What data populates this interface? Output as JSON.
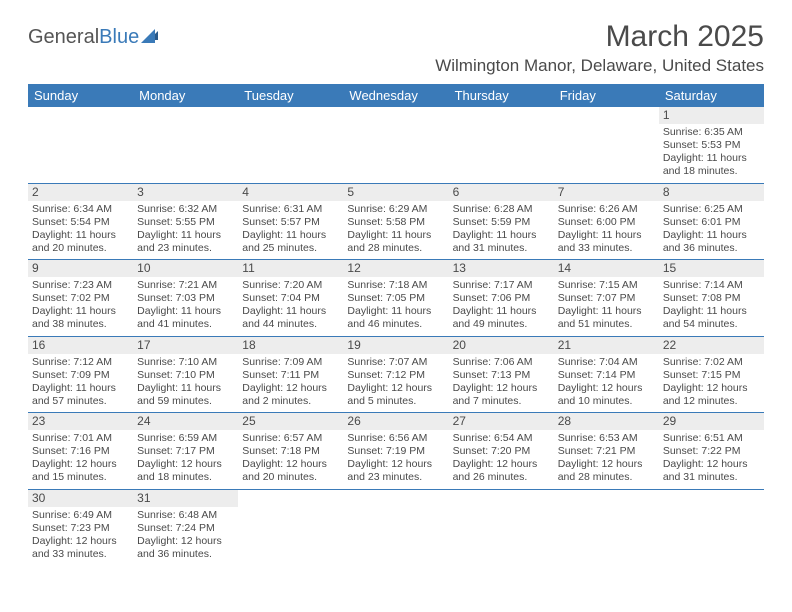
{
  "logo": {
    "general": "General",
    "blue": "Blue"
  },
  "title": "March 2025",
  "location": "Wilmington Manor, Delaware, United States",
  "colors": {
    "header_bg": "#3a7ab8",
    "header_text": "#ffffff",
    "cell_num_bg": "#ededed",
    "text": "#4a4a4a",
    "border": "#3a7ab8"
  },
  "day_names": [
    "Sunday",
    "Monday",
    "Tuesday",
    "Wednesday",
    "Thursday",
    "Friday",
    "Saturday"
  ],
  "weeks": [
    [
      {
        "n": "",
        "empty": true
      },
      {
        "n": "",
        "empty": true
      },
      {
        "n": "",
        "empty": true
      },
      {
        "n": "",
        "empty": true
      },
      {
        "n": "",
        "empty": true
      },
      {
        "n": "",
        "empty": true
      },
      {
        "n": "1",
        "sr": "Sunrise: 6:35 AM",
        "ss": "Sunset: 5:53 PM",
        "dl": "Daylight: 11 hours and 18 minutes."
      }
    ],
    [
      {
        "n": "2",
        "sr": "Sunrise: 6:34 AM",
        "ss": "Sunset: 5:54 PM",
        "dl": "Daylight: 11 hours and 20 minutes."
      },
      {
        "n": "3",
        "sr": "Sunrise: 6:32 AM",
        "ss": "Sunset: 5:55 PM",
        "dl": "Daylight: 11 hours and 23 minutes."
      },
      {
        "n": "4",
        "sr": "Sunrise: 6:31 AM",
        "ss": "Sunset: 5:57 PM",
        "dl": "Daylight: 11 hours and 25 minutes."
      },
      {
        "n": "5",
        "sr": "Sunrise: 6:29 AM",
        "ss": "Sunset: 5:58 PM",
        "dl": "Daylight: 11 hours and 28 minutes."
      },
      {
        "n": "6",
        "sr": "Sunrise: 6:28 AM",
        "ss": "Sunset: 5:59 PM",
        "dl": "Daylight: 11 hours and 31 minutes."
      },
      {
        "n": "7",
        "sr": "Sunrise: 6:26 AM",
        "ss": "Sunset: 6:00 PM",
        "dl": "Daylight: 11 hours and 33 minutes."
      },
      {
        "n": "8",
        "sr": "Sunrise: 6:25 AM",
        "ss": "Sunset: 6:01 PM",
        "dl": "Daylight: 11 hours and 36 minutes."
      }
    ],
    [
      {
        "n": "9",
        "sr": "Sunrise: 7:23 AM",
        "ss": "Sunset: 7:02 PM",
        "dl": "Daylight: 11 hours and 38 minutes."
      },
      {
        "n": "10",
        "sr": "Sunrise: 7:21 AM",
        "ss": "Sunset: 7:03 PM",
        "dl": "Daylight: 11 hours and 41 minutes."
      },
      {
        "n": "11",
        "sr": "Sunrise: 7:20 AM",
        "ss": "Sunset: 7:04 PM",
        "dl": "Daylight: 11 hours and 44 minutes."
      },
      {
        "n": "12",
        "sr": "Sunrise: 7:18 AM",
        "ss": "Sunset: 7:05 PM",
        "dl": "Daylight: 11 hours and 46 minutes."
      },
      {
        "n": "13",
        "sr": "Sunrise: 7:17 AM",
        "ss": "Sunset: 7:06 PM",
        "dl": "Daylight: 11 hours and 49 minutes."
      },
      {
        "n": "14",
        "sr": "Sunrise: 7:15 AM",
        "ss": "Sunset: 7:07 PM",
        "dl": "Daylight: 11 hours and 51 minutes."
      },
      {
        "n": "15",
        "sr": "Sunrise: 7:14 AM",
        "ss": "Sunset: 7:08 PM",
        "dl": "Daylight: 11 hours and 54 minutes."
      }
    ],
    [
      {
        "n": "16",
        "sr": "Sunrise: 7:12 AM",
        "ss": "Sunset: 7:09 PM",
        "dl": "Daylight: 11 hours and 57 minutes."
      },
      {
        "n": "17",
        "sr": "Sunrise: 7:10 AM",
        "ss": "Sunset: 7:10 PM",
        "dl": "Daylight: 11 hours and 59 minutes."
      },
      {
        "n": "18",
        "sr": "Sunrise: 7:09 AM",
        "ss": "Sunset: 7:11 PM",
        "dl": "Daylight: 12 hours and 2 minutes."
      },
      {
        "n": "19",
        "sr": "Sunrise: 7:07 AM",
        "ss": "Sunset: 7:12 PM",
        "dl": "Daylight: 12 hours and 5 minutes."
      },
      {
        "n": "20",
        "sr": "Sunrise: 7:06 AM",
        "ss": "Sunset: 7:13 PM",
        "dl": "Daylight: 12 hours and 7 minutes."
      },
      {
        "n": "21",
        "sr": "Sunrise: 7:04 AM",
        "ss": "Sunset: 7:14 PM",
        "dl": "Daylight: 12 hours and 10 minutes."
      },
      {
        "n": "22",
        "sr": "Sunrise: 7:02 AM",
        "ss": "Sunset: 7:15 PM",
        "dl": "Daylight: 12 hours and 12 minutes."
      }
    ],
    [
      {
        "n": "23",
        "sr": "Sunrise: 7:01 AM",
        "ss": "Sunset: 7:16 PM",
        "dl": "Daylight: 12 hours and 15 minutes."
      },
      {
        "n": "24",
        "sr": "Sunrise: 6:59 AM",
        "ss": "Sunset: 7:17 PM",
        "dl": "Daylight: 12 hours and 18 minutes."
      },
      {
        "n": "25",
        "sr": "Sunrise: 6:57 AM",
        "ss": "Sunset: 7:18 PM",
        "dl": "Daylight: 12 hours and 20 minutes."
      },
      {
        "n": "26",
        "sr": "Sunrise: 6:56 AM",
        "ss": "Sunset: 7:19 PM",
        "dl": "Daylight: 12 hours and 23 minutes."
      },
      {
        "n": "27",
        "sr": "Sunrise: 6:54 AM",
        "ss": "Sunset: 7:20 PM",
        "dl": "Daylight: 12 hours and 26 minutes."
      },
      {
        "n": "28",
        "sr": "Sunrise: 6:53 AM",
        "ss": "Sunset: 7:21 PM",
        "dl": "Daylight: 12 hours and 28 minutes."
      },
      {
        "n": "29",
        "sr": "Sunrise: 6:51 AM",
        "ss": "Sunset: 7:22 PM",
        "dl": "Daylight: 12 hours and 31 minutes."
      }
    ],
    [
      {
        "n": "30",
        "sr": "Sunrise: 6:49 AM",
        "ss": "Sunset: 7:23 PM",
        "dl": "Daylight: 12 hours and 33 minutes."
      },
      {
        "n": "31",
        "sr": "Sunrise: 6:48 AM",
        "ss": "Sunset: 7:24 PM",
        "dl": "Daylight: 12 hours and 36 minutes."
      },
      {
        "n": "",
        "empty": true
      },
      {
        "n": "",
        "empty": true
      },
      {
        "n": "",
        "empty": true
      },
      {
        "n": "",
        "empty": true
      },
      {
        "n": "",
        "empty": true
      }
    ]
  ]
}
